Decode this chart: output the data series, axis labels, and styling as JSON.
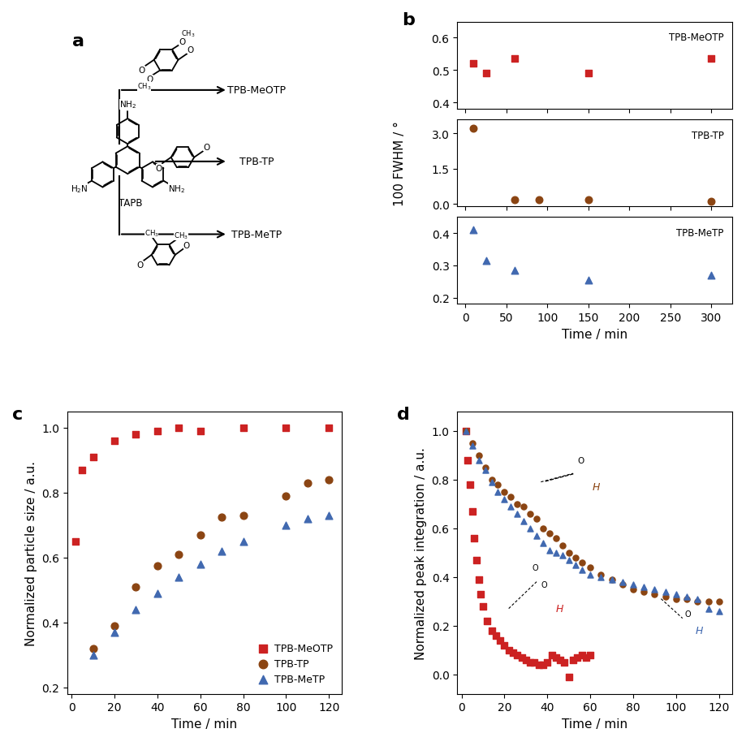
{
  "panel_b": {
    "MeOTP": {
      "time": [
        10,
        25,
        60,
        150,
        300
      ],
      "fwhm": [
        0.52,
        0.49,
        0.535,
        0.49,
        0.535
      ],
      "color": "#cc2222",
      "marker": "s",
      "label": "TPB-MeOTP",
      "ylim": [
        0.38,
        0.65
      ],
      "yticks": [
        0.4,
        0.5,
        0.6
      ]
    },
    "TP": {
      "time": [
        10,
        60,
        90,
        150,
        300
      ],
      "fwhm": [
        3.2,
        0.2,
        0.18,
        0.2,
        0.12
      ],
      "color": "#8B4513",
      "marker": "o",
      "label": "TPB-TP",
      "ylim": [
        -0.1,
        3.6
      ],
      "yticks": [
        0.0,
        1.5,
        3.0
      ]
    },
    "MeTP": {
      "time": [
        10,
        25,
        60,
        150,
        300
      ],
      "fwhm": [
        0.41,
        0.315,
        0.285,
        0.255,
        0.27
      ],
      "color": "#4169b0",
      "marker": "^",
      "label": "TPB-MeTP",
      "ylim": [
        0.18,
        0.45
      ],
      "yticks": [
        0.2,
        0.3,
        0.4
      ]
    },
    "xlabel": "Time / min",
    "ylabel": "100 FWHM / °",
    "xlim": [
      -10,
      325
    ],
    "xticks": [
      0,
      50,
      100,
      150,
      200,
      250,
      300
    ]
  },
  "panel_c": {
    "MeOTP": {
      "time": [
        2,
        5,
        10,
        20,
        30,
        40,
        50,
        60,
        80,
        100,
        120
      ],
      "size": [
        0.65,
        0.87,
        0.91,
        0.96,
        0.98,
        0.99,
        1.0,
        0.99,
        1.0,
        1.0,
        1.0
      ],
      "color": "#cc2222",
      "marker": "s",
      "label": "TPB-MeOTP"
    },
    "TP": {
      "time": [
        10,
        20,
        30,
        40,
        50,
        60,
        70,
        80,
        100,
        110,
        120
      ],
      "size": [
        0.32,
        0.39,
        0.51,
        0.575,
        0.61,
        0.67,
        0.725,
        0.73,
        0.79,
        0.83,
        0.84
      ],
      "color": "#8B4513",
      "marker": "o",
      "label": "TPB-TP"
    },
    "MeTP": {
      "time": [
        10,
        20,
        30,
        40,
        50,
        60,
        70,
        80,
        100,
        110,
        120
      ],
      "size": [
        0.3,
        0.37,
        0.44,
        0.49,
        0.54,
        0.58,
        0.62,
        0.65,
        0.7,
        0.72,
        0.73
      ],
      "color": "#4169b0",
      "marker": "^",
      "label": "TPB-MeTP"
    },
    "xlabel": "Time / min",
    "ylabel": "Normalized particle size / a.u.",
    "xlim": [
      -2,
      126
    ],
    "ylim": [
      0.18,
      1.05
    ],
    "xticks": [
      0,
      20,
      40,
      60,
      80,
      100,
      120
    ],
    "yticks": [
      0.2,
      0.4,
      0.6,
      0.8,
      1.0
    ]
  },
  "panel_d": {
    "MeOTP": {
      "time": [
        2,
        3,
        4,
        5,
        6,
        7,
        8,
        9,
        10,
        12,
        14,
        16,
        18,
        20,
        22,
        24,
        26,
        28,
        30,
        32,
        34,
        36,
        38,
        40,
        42,
        44,
        46,
        48,
        50,
        52,
        54,
        56,
        58,
        60
      ],
      "peak": [
        1.0,
        0.88,
        0.78,
        0.67,
        0.56,
        0.47,
        0.39,
        0.33,
        0.28,
        0.22,
        0.18,
        0.16,
        0.14,
        0.12,
        0.1,
        0.09,
        0.08,
        0.07,
        0.06,
        0.05,
        0.05,
        0.04,
        0.04,
        0.05,
        0.08,
        0.07,
        0.06,
        0.05,
        -0.01,
        0.06,
        0.07,
        0.08,
        0.07,
        0.08
      ],
      "color": "#cc2222",
      "marker": "s",
      "label": "TPB-MeOTP"
    },
    "TP": {
      "time": [
        2,
        5,
        8,
        11,
        14,
        17,
        20,
        23,
        26,
        29,
        32,
        35,
        38,
        41,
        44,
        47,
        50,
        53,
        56,
        60,
        65,
        70,
        75,
        80,
        85,
        90,
        95,
        100,
        105,
        110,
        115,
        120
      ],
      "peak": [
        1.0,
        0.95,
        0.9,
        0.85,
        0.8,
        0.78,
        0.75,
        0.73,
        0.7,
        0.69,
        0.66,
        0.64,
        0.6,
        0.58,
        0.56,
        0.53,
        0.5,
        0.48,
        0.46,
        0.44,
        0.41,
        0.39,
        0.37,
        0.35,
        0.34,
        0.33,
        0.32,
        0.31,
        0.31,
        0.3,
        0.3,
        0.3
      ],
      "color": "#8B4513",
      "marker": "o",
      "label": "TPB-TP"
    },
    "MeTP": {
      "time": [
        2,
        5,
        8,
        11,
        14,
        17,
        20,
        23,
        26,
        29,
        32,
        35,
        38,
        41,
        44,
        47,
        50,
        53,
        56,
        60,
        65,
        70,
        75,
        80,
        85,
        90,
        95,
        100,
        105,
        110,
        115,
        120
      ],
      "peak": [
        1.0,
        0.94,
        0.88,
        0.84,
        0.79,
        0.75,
        0.72,
        0.69,
        0.66,
        0.63,
        0.6,
        0.57,
        0.54,
        0.51,
        0.5,
        0.49,
        0.47,
        0.45,
        0.43,
        0.41,
        0.4,
        0.39,
        0.38,
        0.37,
        0.36,
        0.35,
        0.34,
        0.33,
        0.32,
        0.31,
        0.27,
        0.26
      ],
      "color": "#4169b0",
      "marker": "^",
      "label": "TPB-MeTP"
    },
    "xlabel": "Time / min",
    "ylabel": "Normalized peak integration / a.u.",
    "xlim": [
      -2,
      126
    ],
    "ylim": [
      -0.08,
      1.08
    ],
    "xticks": [
      0,
      20,
      40,
      60,
      80,
      100,
      120
    ],
    "yticks": [
      0.0,
      0.2,
      0.4,
      0.6,
      0.8,
      1.0
    ]
  },
  "background_color": "#ffffff",
  "tick_labelsize": 10,
  "axis_labelsize": 11
}
